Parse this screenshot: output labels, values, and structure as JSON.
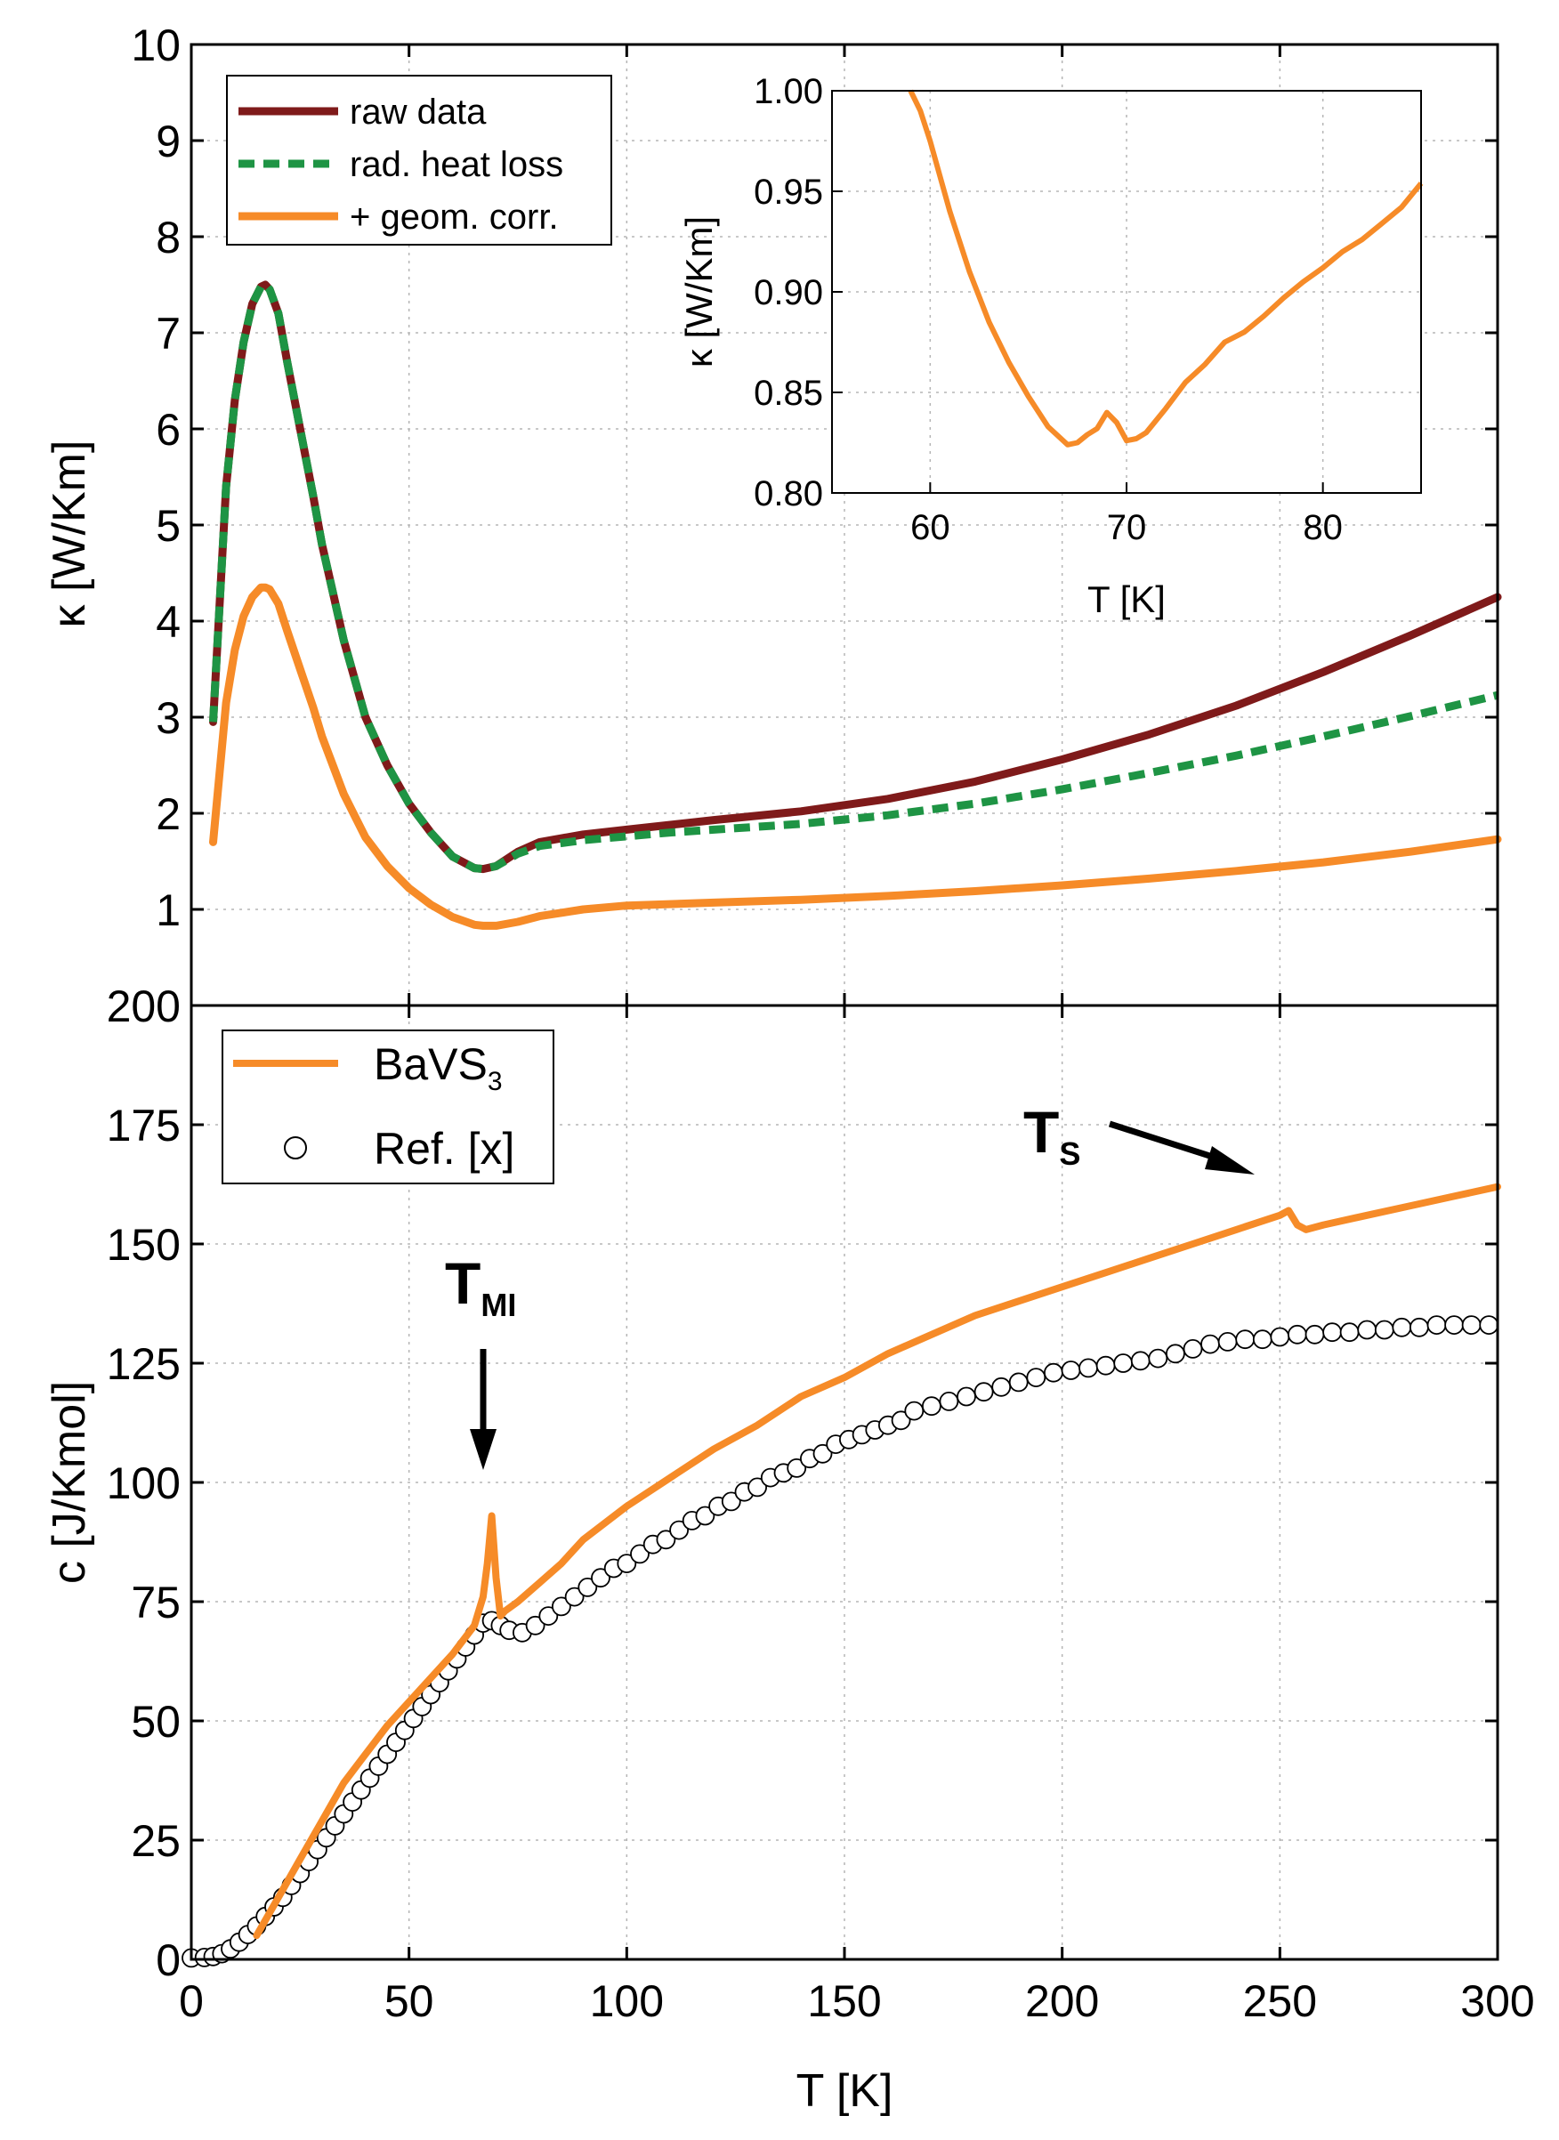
{
  "chart_data": [
    {
      "type": "line",
      "panel": "top",
      "ylabel": "κ [W/Km]",
      "xlabel": "",
      "xlim": [
        0,
        300
      ],
      "ylim": [
        0,
        10
      ],
      "x_ticks": [
        0,
        50,
        100,
        150,
        200,
        250,
        300
      ],
      "y_ticks": [
        1,
        2,
        3,
        4,
        5,
        6,
        7,
        8,
        9,
        10
      ],
      "y_tick_labels": [
        "1",
        "2",
        "3",
        "4",
        "5",
        "6",
        "7",
        "8",
        "9",
        "10"
      ],
      "legend_position": "top-left",
      "grid": true,
      "series": [
        {
          "name": "raw data",
          "color": "#7f1a1a",
          "style": "solid",
          "x": [
            5,
            8,
            10,
            12,
            14,
            16,
            17,
            18,
            20,
            22,
            25,
            28,
            30,
            35,
            40,
            45,
            50,
            55,
            60,
            65,
            67,
            70,
            75,
            80,
            90,
            100,
            110,
            120,
            140,
            160,
            180,
            200,
            220,
            240,
            260,
            280,
            300
          ],
          "y": [
            2.95,
            5.4,
            6.3,
            6.9,
            7.3,
            7.48,
            7.5,
            7.45,
            7.2,
            6.7,
            6.0,
            5.3,
            4.8,
            3.8,
            3.0,
            2.5,
            2.1,
            1.8,
            1.55,
            1.43,
            1.42,
            1.45,
            1.6,
            1.7,
            1.78,
            1.83,
            1.88,
            1.93,
            2.02,
            2.15,
            2.33,
            2.56,
            2.82,
            3.12,
            3.47,
            3.85,
            4.25
          ]
        },
        {
          "name": "rad. heat loss",
          "color": "#1e9444",
          "style": "dashed",
          "x": [
            5,
            8,
            10,
            12,
            14,
            16,
            17,
            18,
            20,
            22,
            25,
            28,
            30,
            35,
            40,
            45,
            50,
            55,
            60,
            65,
            67,
            70,
            75,
            80,
            90,
            100,
            110,
            120,
            140,
            160,
            180,
            200,
            220,
            240,
            260,
            280,
            300
          ],
          "y": [
            2.95,
            5.4,
            6.3,
            6.9,
            7.3,
            7.48,
            7.5,
            7.45,
            7.2,
            6.7,
            6.0,
            5.3,
            4.8,
            3.8,
            3.0,
            2.5,
            2.1,
            1.8,
            1.55,
            1.43,
            1.42,
            1.45,
            1.58,
            1.66,
            1.72,
            1.76,
            1.8,
            1.83,
            1.89,
            1.98,
            2.1,
            2.25,
            2.42,
            2.6,
            2.8,
            3.01,
            3.23
          ]
        },
        {
          "name": "+ geom. corr.",
          "color": "#f68b28",
          "style": "solid",
          "x": [
            5,
            8,
            10,
            12,
            14,
            16,
            17,
            18,
            20,
            22,
            25,
            28,
            30,
            35,
            40,
            45,
            50,
            55,
            60,
            65,
            67,
            70,
            75,
            80,
            90,
            100,
            120,
            140,
            160,
            180,
            200,
            220,
            240,
            260,
            280,
            300
          ],
          "y": [
            1.7,
            3.15,
            3.7,
            4.05,
            4.25,
            4.35,
            4.35,
            4.33,
            4.18,
            3.9,
            3.5,
            3.1,
            2.8,
            2.2,
            1.75,
            1.45,
            1.22,
            1.05,
            0.92,
            0.84,
            0.83,
            0.83,
            0.87,
            0.93,
            1.0,
            1.04,
            1.07,
            1.1,
            1.14,
            1.19,
            1.25,
            1.32,
            1.4,
            1.49,
            1.6,
            1.73
          ]
        }
      ]
    },
    {
      "type": "line",
      "panel": "inset",
      "ylabel": "κ [W/Km]",
      "xlabel": "T [K]",
      "xlim": [
        55,
        85
      ],
      "ylim": [
        0.8,
        1.0
      ],
      "x_ticks": [
        60,
        70,
        80
      ],
      "y_ticks": [
        0.8,
        0.85,
        0.9,
        0.95,
        1.0
      ],
      "y_tick_labels": [
        "0.80",
        "0.85",
        "0.90",
        "0.95",
        "1.00"
      ],
      "grid": true,
      "series": [
        {
          "name": "+ geom. corr.",
          "color": "#f68b28",
          "x": [
            59,
            59.5,
            60,
            61,
            62,
            63,
            64,
            65,
            66,
            67,
            67.5,
            68,
            68.5,
            69,
            69.5,
            70,
            70.5,
            71,
            72,
            73,
            74,
            75,
            76,
            77,
            78,
            79,
            80,
            81,
            82,
            83,
            84,
            85
          ],
          "y": [
            1.0,
            0.99,
            0.975,
            0.94,
            0.91,
            0.885,
            0.865,
            0.848,
            0.833,
            0.824,
            0.825,
            0.829,
            0.832,
            0.84,
            0.835,
            0.826,
            0.827,
            0.83,
            0.842,
            0.855,
            0.864,
            0.875,
            0.88,
            0.888,
            0.897,
            0.905,
            0.912,
            0.92,
            0.926,
            0.934,
            0.942,
            0.954
          ]
        }
      ]
    },
    {
      "type": "line",
      "panel": "bottom",
      "ylabel": "c [J/Kmol]",
      "xlabel": "T [K]",
      "xlim": [
        0,
        300
      ],
      "ylim": [
        0,
        200
      ],
      "x_ticks": [
        0,
        50,
        100,
        150,
        200,
        250,
        300
      ],
      "y_ticks": [
        0,
        25,
        50,
        75,
        100,
        125,
        150,
        175,
        200
      ],
      "y_tick_labels": [
        "0",
        "25",
        "50",
        "75",
        "100",
        "125",
        "150",
        "175",
        "200"
      ],
      "legend_position": "top-left",
      "grid": true,
      "series": [
        {
          "name": "BaVS3",
          "color": "#f68b28",
          "style": "solid",
          "x": [
            15,
            20,
            25,
            30,
            35,
            40,
            45,
            50,
            55,
            60,
            65,
            67,
            68,
            69,
            70,
            71,
            72,
            75,
            80,
            85,
            90,
            100,
            110,
            120,
            130,
            140,
            150,
            160,
            170,
            180,
            190,
            200,
            210,
            220,
            230,
            240,
            250,
            252,
            254,
            256,
            260,
            270,
            280,
            290,
            300
          ],
          "y": [
            5,
            13,
            21,
            29,
            37,
            43,
            49,
            54,
            59,
            64,
            70,
            76,
            83,
            93,
            80,
            72,
            73,
            75,
            79,
            83,
            88,
            95,
            101,
            107,
            112,
            118,
            122,
            127,
            131,
            135,
            138,
            141,
            144,
            147,
            150,
            153,
            156,
            157,
            154,
            153,
            154,
            156,
            158,
            160,
            162
          ]
        },
        {
          "name": "Ref. [x]",
          "color": "#000000",
          "style": "open-circles",
          "x": [
            0,
            3,
            5,
            7,
            9,
            11,
            13,
            15,
            17,
            19,
            21,
            23,
            25,
            27,
            29,
            31,
            33,
            35,
            37,
            39,
            41,
            43,
            45,
            47,
            49,
            51,
            53,
            55,
            57,
            59,
            61,
            63,
            65,
            67,
            69,
            71,
            73,
            76,
            79,
            82,
            85,
            88,
            91,
            94,
            97,
            100,
            103,
            106,
            109,
            112,
            115,
            118,
            121,
            124,
            127,
            130,
            133,
            136,
            139,
            142,
            145,
            148,
            151,
            154,
            157,
            160,
            163,
            166,
            170,
            174,
            178,
            182,
            186,
            190,
            194,
            198,
            202,
            206,
            210,
            214,
            218,
            222,
            226,
            230,
            234,
            238,
            242,
            246,
            250,
            254,
            258,
            262,
            266,
            270,
            274,
            278,
            282,
            286,
            290,
            294,
            298
          ],
          "y": [
            0.3,
            0.4,
            0.6,
            1.2,
            2.2,
            3.6,
            5.2,
            7,
            9,
            11,
            13,
            15.5,
            18,
            20.5,
            23,
            25.5,
            28,
            30.5,
            33,
            35.5,
            38,
            40.5,
            43,
            45.5,
            48,
            50.5,
            53,
            55.5,
            58,
            60.5,
            63,
            65.5,
            68,
            70.5,
            71,
            70,
            69,
            68.5,
            70,
            72,
            74,
            76,
            78,
            80,
            82,
            83,
            85,
            87,
            88,
            90,
            92,
            93,
            95,
            96,
            98,
            99,
            101,
            102,
            103,
            105,
            106,
            108,
            109,
            110,
            111,
            112,
            113,
            115,
            116,
            117,
            118,
            119,
            120,
            121,
            122,
            123,
            123.5,
            124,
            124.5,
            125,
            125.5,
            126,
            127,
            128,
            129,
            129.5,
            130,
            130,
            130.5,
            131,
            131,
            131.5,
            131.5,
            132,
            132,
            132.5,
            132.5,
            133,
            133,
            133,
            133
          ]
        }
      ],
      "annotations": [
        {
          "label": "T",
          "subscript": "MI",
          "arrow_to": [
            68,
            102
          ]
        },
        {
          "label": "T",
          "subscript": "S",
          "arrow_to": [
            246,
            163
          ]
        }
      ]
    }
  ],
  "legend_top": [
    "raw data",
    "rad. heat loss",
    "+ geom. corr."
  ],
  "legend_bottom": {
    "item1_main": "BaVS",
    "item1_sub": "3",
    "item2": "Ref. [x]"
  },
  "annotations_text": {
    "tmi_main": "T",
    "tmi_sub": "MI",
    "ts_main": "T",
    "ts_sub": "S"
  },
  "labels": {
    "top_ylabel": "κ [W/Km]",
    "bottom_ylabel": "c [J/Kmol]",
    "xlabel": "T [K]",
    "inset_ylabel": "κ [W/Km]",
    "inset_xlabel": "T [K]"
  }
}
